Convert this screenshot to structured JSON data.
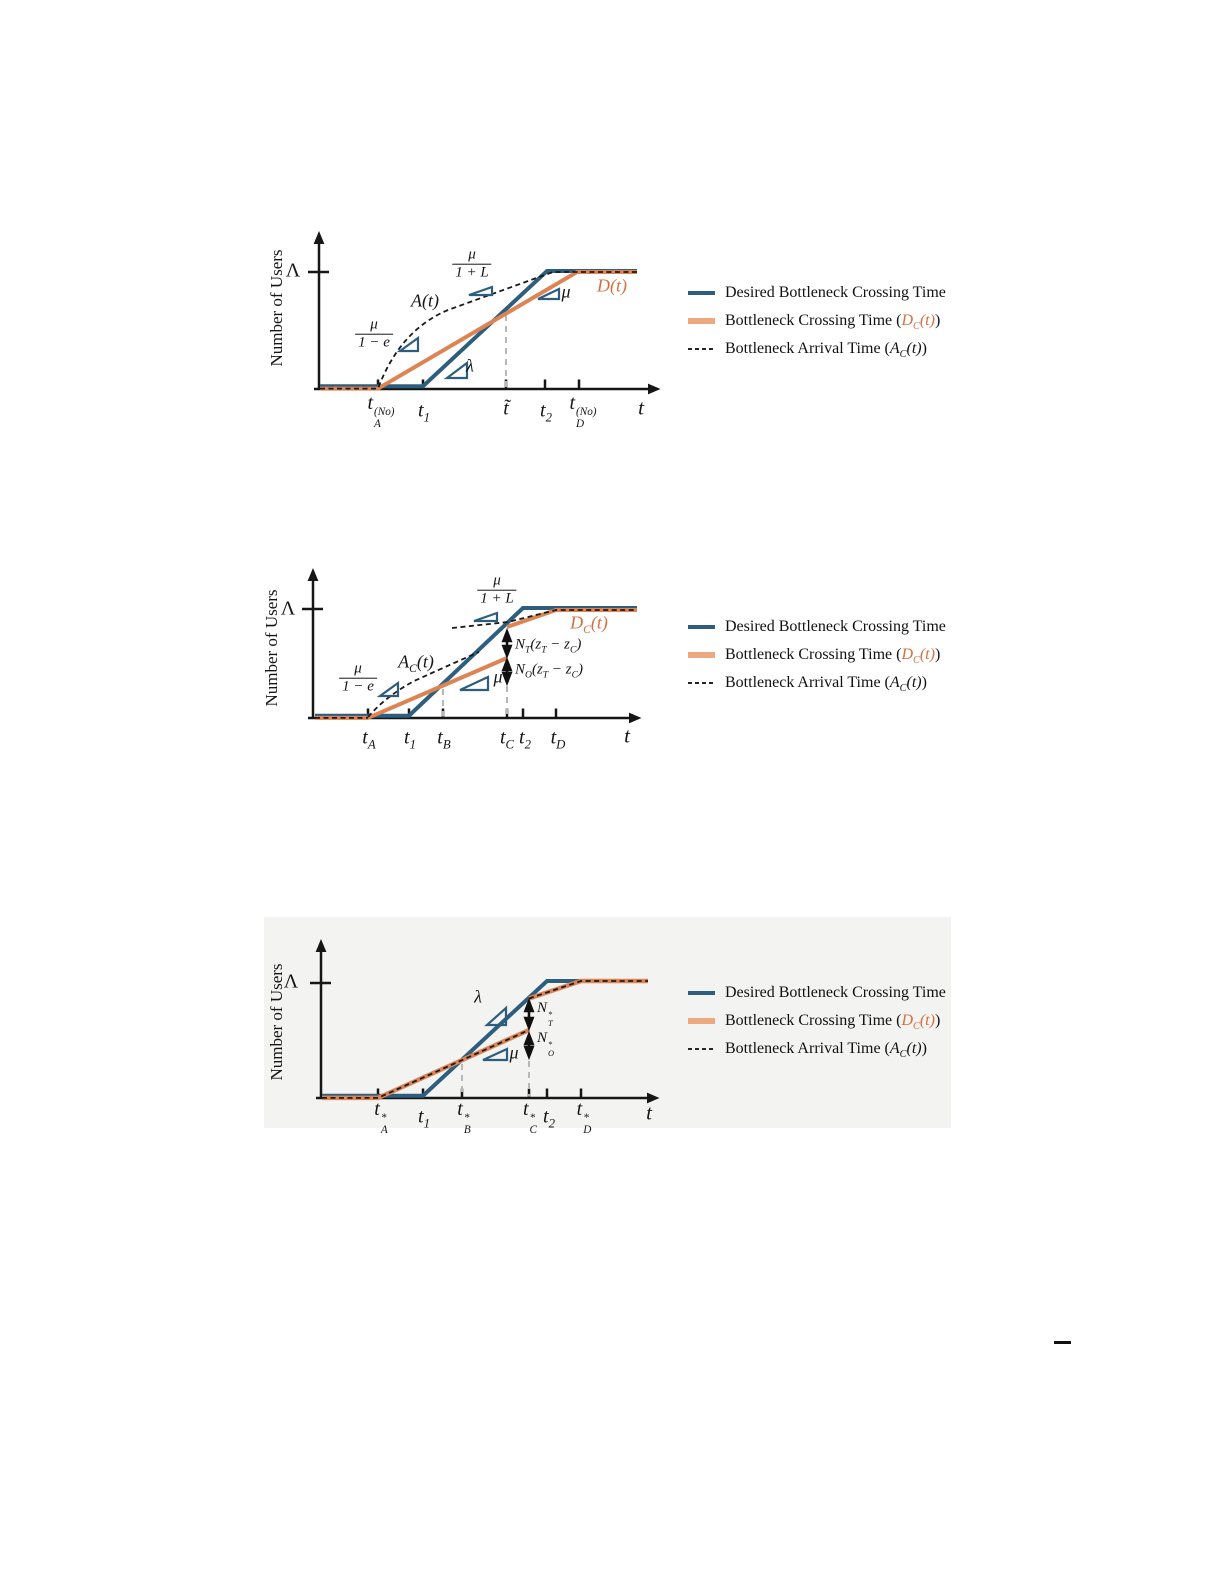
{
  "colors": {
    "desired_blue": "#2E5E7E",
    "crossing_orange": "#DD8455",
    "orange_text": "#D2703F",
    "arrival_black": "#1a1a1a",
    "guide_gray": "#b8b8b8",
    "panel3_background": "#f3f3f1"
  },
  "legend": {
    "items": [
      {
        "swatch": "blue-solid-line",
        "runs": [
          {
            "t": "Desired Bottleneck Crossing Time"
          }
        ]
      },
      {
        "swatch": "orange-solid-line",
        "runs": [
          {
            "t": "Bottleneck Crossing Time ("
          },
          {
            "t": "D",
            "c": "m o"
          },
          {
            "t": "C",
            "p": "sub",
            "c": "o"
          },
          {
            "t": "(t)",
            "c": "m o"
          },
          {
            "t": ")"
          }
        ]
      },
      {
        "swatch": "black-dashed-line",
        "runs": [
          {
            "t": "Bottleneck Arrival Time ("
          },
          {
            "t": "A",
            "c": "m"
          },
          {
            "t": "C",
            "p": "sub"
          },
          {
            "t": "(t)",
            "c": "m"
          },
          {
            "t": ")"
          }
        ]
      }
    ]
  },
  "panels": [
    {
      "ylabel": "Number of Users",
      "capacity_label": "Λ",
      "axis_t": [
        {
          "t": "t",
          "c": "m"
        }
      ],
      "arrival_label": [
        {
          "t": "A",
          "c": "m"
        },
        {
          "t": "(t)",
          "c": "m"
        }
      ],
      "departure_label": [
        {
          "t": "D",
          "c": "m o"
        },
        {
          "t": "(t)",
          "c": "m o"
        }
      ],
      "slope_lambda": "λ",
      "slope_mu": "μ",
      "frac_early": {
        "num": "μ",
        "den": "1 − e"
      },
      "frac_late": {
        "num": "μ",
        "den": "1 + L"
      },
      "ticks": {
        "tA": [
          {
            "t": "t",
            "c": "m"
          },
          {
            "ss": {
              "sup": "(No)",
              "sub": "A"
            }
          }
        ],
        "t1": [
          {
            "t": "t",
            "c": "m"
          },
          {
            "t": "1",
            "p": "sub"
          }
        ],
        "ttilde": [
          {
            "t": "t̃",
            "c": "m"
          }
        ],
        "t2": [
          {
            "t": "t",
            "c": "m"
          },
          {
            "t": "2",
            "p": "sub"
          }
        ],
        "tD": [
          {
            "t": "t",
            "c": "m"
          },
          {
            "ss": {
              "sup": "(No)",
              "sub": "D"
            }
          }
        ]
      }
    },
    {
      "ylabel": "Number of Users",
      "capacity_label": "Λ",
      "axis_t": [
        {
          "t": "t",
          "c": "m"
        }
      ],
      "arrival_label": [
        {
          "t": "A",
          "c": "m"
        },
        {
          "t": "C",
          "p": "sub"
        },
        {
          "t": "(t)",
          "c": "m"
        }
      ],
      "departure_label": [
        {
          "t": "D",
          "c": "m o"
        },
        {
          "t": "C",
          "p": "sub",
          "c": "o"
        },
        {
          "t": "(t)",
          "c": "m o"
        }
      ],
      "slope_mu": "μ",
      "frac_early": {
        "num": "μ",
        "den": "1 − e"
      },
      "frac_late": {
        "num": "μ",
        "den": "1 + L"
      },
      "queue_transit": [
        {
          "t": "N",
          "c": "m"
        },
        {
          "t": "T",
          "p": "sub"
        },
        {
          "t": "(z",
          "c": "m"
        },
        {
          "t": "T",
          "p": "sub"
        },
        {
          "t": " − z",
          "c": "m"
        },
        {
          "t": "C",
          "p": "sub"
        },
        {
          "t": ")",
          "c": "m"
        }
      ],
      "queue_other": [
        {
          "t": "N",
          "c": "m"
        },
        {
          "t": "O",
          "p": "sub"
        },
        {
          "t": "(z",
          "c": "m"
        },
        {
          "t": "T",
          "p": "sub"
        },
        {
          "t": " − z",
          "c": "m"
        },
        {
          "t": "C",
          "p": "sub"
        },
        {
          "t": ")",
          "c": "m"
        }
      ],
      "ticks": {
        "tA": [
          {
            "t": "t",
            "c": "m"
          },
          {
            "t": "A",
            "p": "sub"
          }
        ],
        "t1": [
          {
            "t": "t",
            "c": "m"
          },
          {
            "t": "1",
            "p": "sub"
          }
        ],
        "tB": [
          {
            "t": "t",
            "c": "m"
          },
          {
            "t": "B",
            "p": "sub"
          }
        ],
        "tC": [
          {
            "t": "t",
            "c": "m"
          },
          {
            "t": "C",
            "p": "sub"
          }
        ],
        "t2": [
          {
            "t": "t",
            "c": "m"
          },
          {
            "t": "2",
            "p": "sub"
          }
        ],
        "tD": [
          {
            "t": "t",
            "c": "m"
          },
          {
            "t": "D",
            "p": "sub"
          }
        ]
      }
    },
    {
      "ylabel": "Number of Users",
      "capacity_label": "Λ",
      "axis_t": [
        {
          "t": "t",
          "c": "m"
        }
      ],
      "slope_lambda": "λ",
      "slope_mu": "μ",
      "queue_transit": [
        {
          "t": "N",
          "c": "m"
        },
        {
          "ss": {
            "sup": "*",
            "sub": "T"
          }
        }
      ],
      "queue_other": [
        {
          "t": "N",
          "c": "m"
        },
        {
          "ss": {
            "sup": "*",
            "sub": "O"
          }
        }
      ],
      "ticks": {
        "tA": [
          {
            "t": "t",
            "c": "m"
          },
          {
            "ss": {
              "sup": "*",
              "sub": "A"
            }
          }
        ],
        "t1": [
          {
            "t": "t",
            "c": "m"
          },
          {
            "t": "1",
            "p": "sub"
          }
        ],
        "tB": [
          {
            "t": "t",
            "c": "m"
          },
          {
            "ss": {
              "sup": "*",
              "sub": "B"
            }
          }
        ],
        "tC": [
          {
            "t": "t",
            "c": "m"
          },
          {
            "ss": {
              "sup": "*",
              "sub": "C"
            }
          }
        ],
        "t2": [
          {
            "t": "t",
            "c": "m"
          },
          {
            "t": "2",
            "p": "sub"
          }
        ],
        "tD": [
          {
            "t": "t",
            "c": "m"
          },
          {
            "ss": {
              "sup": "*",
              "sub": "D"
            }
          }
        ]
      }
    }
  ]
}
